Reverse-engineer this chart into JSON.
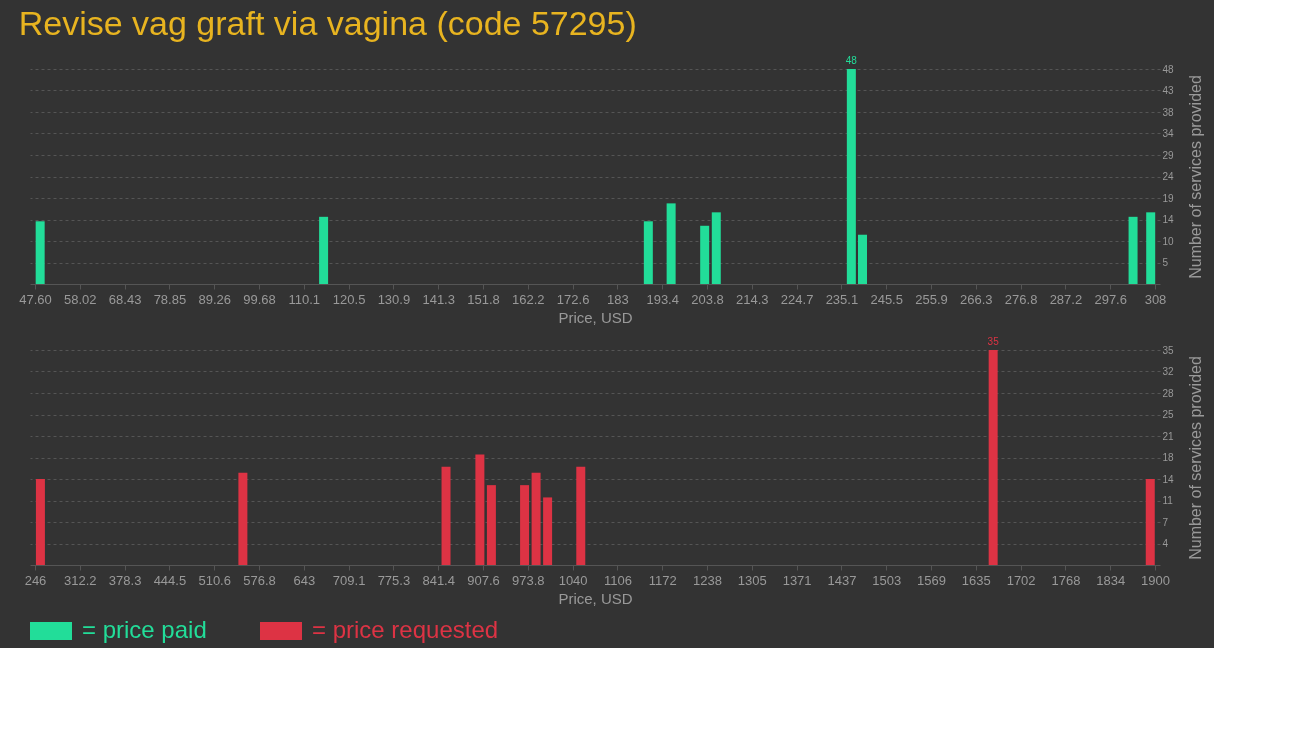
{
  "chart_data": [
    {
      "type": "bar",
      "title": "Revise vag graft via vagina (code 57295)",
      "xlabel": "Price, USD",
      "ylabel": "Number of services provided",
      "x": [
        48.8,
        114.7,
        190.2,
        195.5,
        203.3,
        206.0,
        237.4,
        240.0,
        302.9,
        307.0
      ],
      "series": [
        {
          "name": "= price paid",
          "color": "#22dd99",
          "values": [
            14,
            15,
            14,
            18,
            13,
            16,
            48,
            11,
            15,
            16
          ],
          "value_labels": [
            null,
            null,
            null,
            null,
            null,
            null,
            "48",
            null,
            null,
            null
          ]
        }
      ],
      "xlim": [
        47.6,
        308
      ],
      "xticks": [
        {
          "value": 47.6,
          "label": "47.60"
        },
        {
          "value": 58.016,
          "label": "58.02"
        },
        {
          "value": 68.432,
          "label": "68.43"
        },
        {
          "value": 78.848,
          "label": "78.85"
        },
        {
          "value": 89.264,
          "label": "89.26"
        },
        99.68,
        {
          "value": 110.096,
          "label": "110.1"
        },
        {
          "value": 120.512,
          "label": "120.5"
        },
        {
          "value": 130.928,
          "label": "130.9"
        },
        {
          "value": 141.344,
          "label": "141.3"
        },
        {
          "value": 151.76,
          "label": "151.8"
        },
        {
          "value": 162.176,
          "label": "162.2"
        },
        {
          "value": 172.592,
          "label": "172.6"
        },
        {
          "value": 183.008,
          "label": "183"
        },
        {
          "value": 193.424,
          "label": "193.4"
        },
        {
          "value": 203.84,
          "label": "203.8"
        },
        {
          "value": 214.256,
          "label": "214.3"
        },
        {
          "value": 224.672,
          "label": "224.7"
        },
        {
          "value": 235.088,
          "label": "235.1"
        },
        {
          "value": 245.504,
          "label": "245.5"
        },
        {
          "value": 255.92,
          "label": "255.9"
        },
        {
          "value": 266.336,
          "label": "266.3"
        },
        {
          "value": 276.752,
          "label": "276.8"
        },
        {
          "value": 287.168,
          "label": "287.2"
        },
        {
          "value": 297.584,
          "label": "297.6"
        },
        308
      ],
      "ylim": [
        0,
        48
      ],
      "yticks": [
        {
          "value": 4.8,
          "label": "5"
        },
        {
          "value": 9.6,
          "label": "10"
        },
        {
          "value": 14.4,
          "label": "14"
        },
        {
          "value": 19.2,
          "label": "19"
        },
        24,
        {
          "value": 28.8,
          "label": "29"
        },
        {
          "value": 33.6,
          "label": "34"
        },
        {
          "value": 38.4,
          "label": "38"
        },
        {
          "value": 43.2,
          "label": "43"
        },
        48
      ],
      "grid": "y",
      "legend": "bottom left"
    },
    {
      "type": "bar",
      "xlabel": "Price, USD",
      "ylabel": "Number of services provided",
      "x": [
        254,
        553,
        853,
        903,
        920,
        969,
        986,
        1003,
        1052,
        1661,
        1893
      ],
      "series": [
        {
          "name": "= price requested",
          "color": "#dd3344",
          "values": [
            14,
            15,
            16,
            18,
            13,
            13,
            15,
            11,
            16,
            35,
            14
          ],
          "value_labels": [
            null,
            null,
            null,
            null,
            null,
            null,
            null,
            null,
            null,
            "35",
            null
          ]
        }
      ],
      "xlim": [
        246,
        1900
      ],
      "xticks": [
        246,
        {
          "value": 312.16,
          "label": "312.2"
        },
        {
          "value": 378.32,
          "label": "378.3"
        },
        {
          "value": 444.48,
          "label": "444.5"
        },
        {
          "value": 510.64,
          "label": "510.6"
        },
        576.8,
        {
          "value": 642.96,
          "label": "643"
        },
        {
          "value": 709.12,
          "label": "709.1"
        },
        {
          "value": 775.28,
          "label": "775.3"
        },
        {
          "value": 841.44,
          "label": "841.4"
        },
        907.6,
        {
          "value": 973.76,
          "label": "973.8"
        },
        {
          "value": 1039.92,
          "label": "1040"
        },
        {
          "value": 1106.08,
          "label": "1106"
        },
        {
          "value": 1172.24,
          "label": "1172"
        },
        {
          "value": 1238.4,
          "label": "1238"
        },
        {
          "value": 1304.56,
          "label": "1305"
        },
        {
          "value": 1370.72,
          "label": "1371"
        },
        {
          "value": 1436.88,
          "label": "1437"
        },
        {
          "value": 1503.04,
          "label": "1503"
        },
        {
          "value": 1569.2,
          "label": "1569"
        },
        {
          "value": 1635.36,
          "label": "1635"
        },
        {
          "value": 1701.52,
          "label": "1702"
        },
        {
          "value": 1767.68,
          "label": "1768"
        },
        {
          "value": 1833.84,
          "label": "1834"
        },
        1900
      ],
      "ylim": [
        0,
        35
      ],
      "yticks": [
        {
          "value": 3.5,
          "label": "4"
        },
        7,
        {
          "value": 10.5,
          "label": "11"
        },
        14,
        {
          "value": 17.5,
          "label": "18"
        },
        21,
        {
          "value": 24.5,
          "label": "25"
        },
        28,
        {
          "value": 31.5,
          "label": "32"
        },
        35
      ],
      "grid": "y",
      "legend": "bottom left"
    }
  ]
}
